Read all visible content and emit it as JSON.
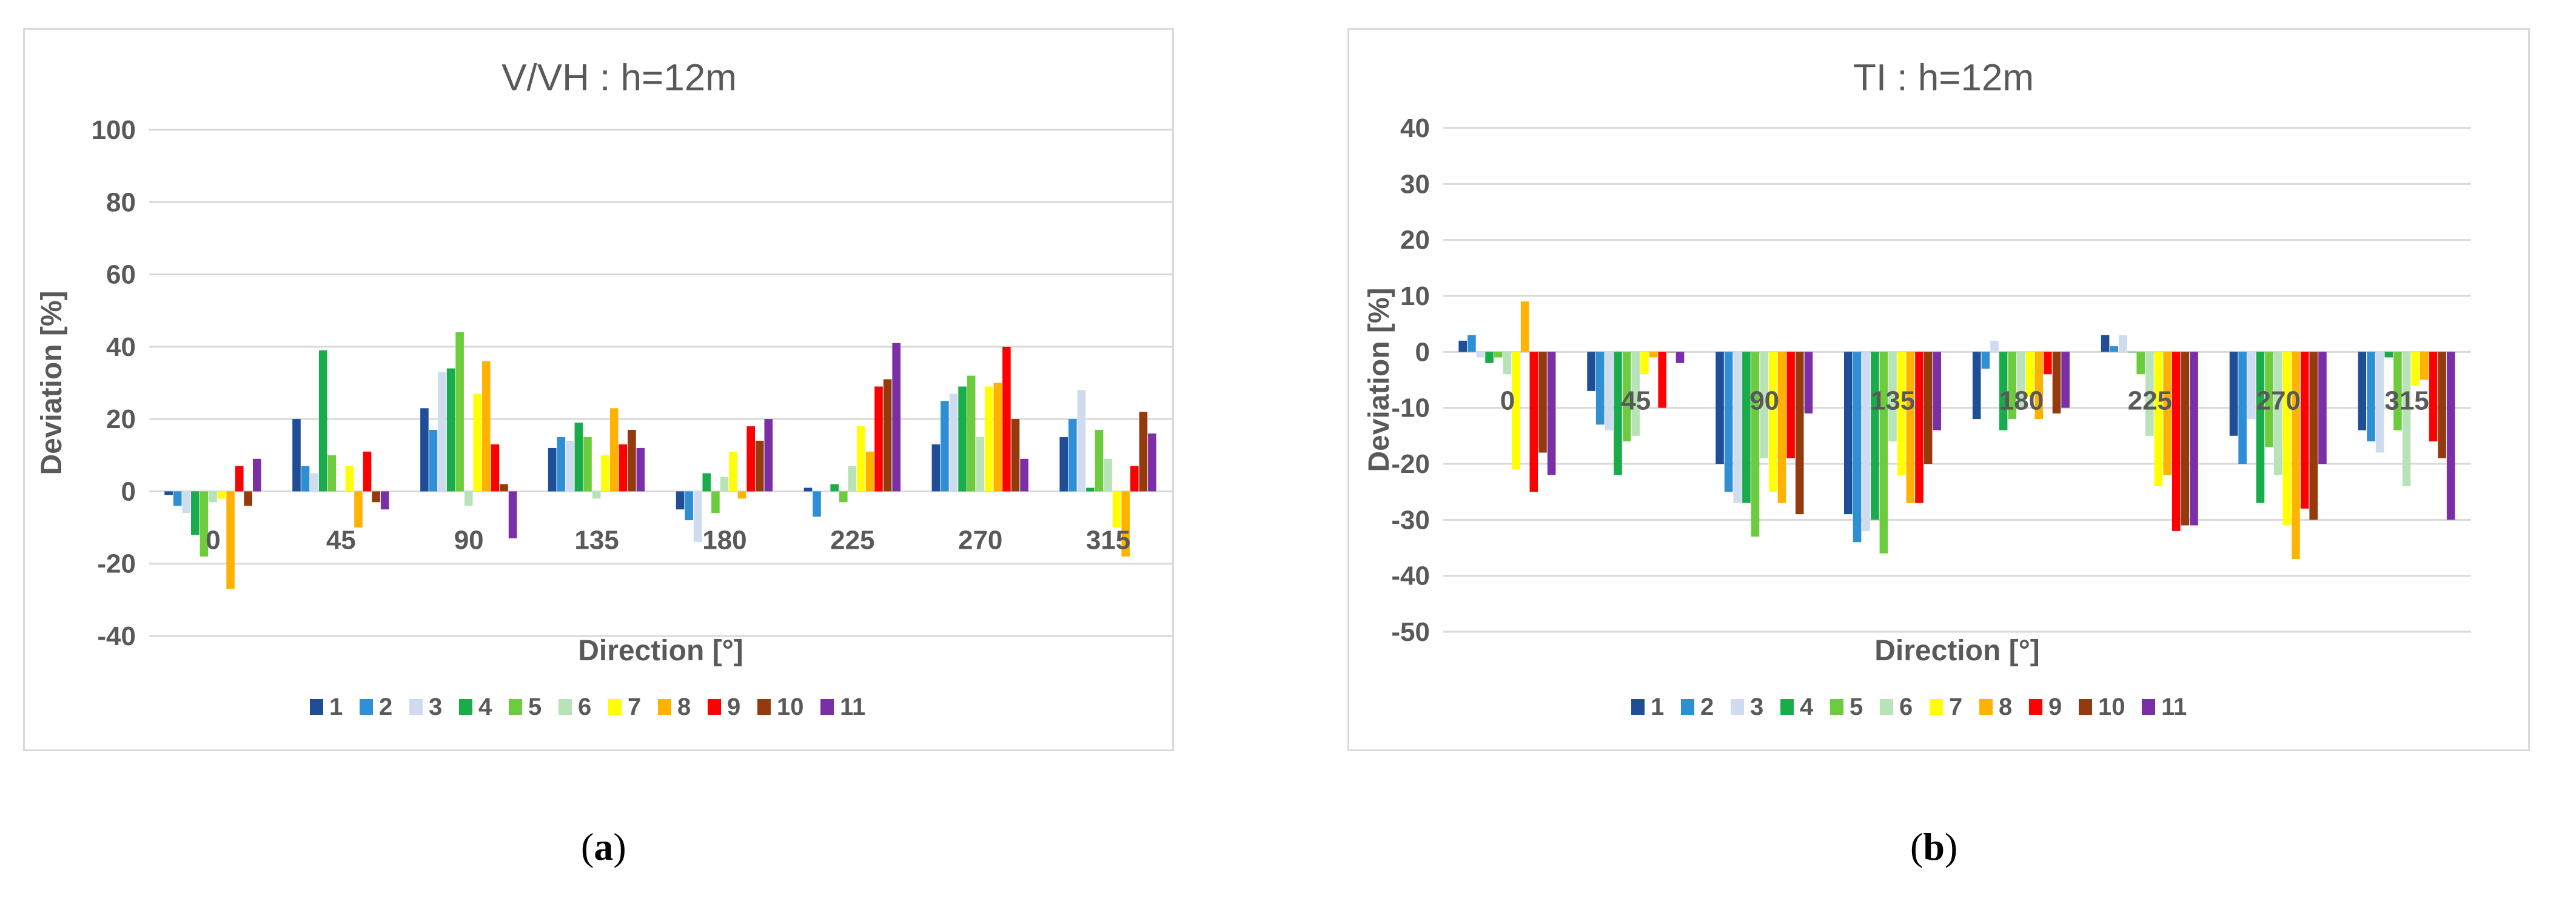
{
  "series_colors": [
    "#1f4e96",
    "#2e8fd4",
    "#cfdcf0",
    "#19ac4a",
    "#6dcc3e",
    "#b8e2b8",
    "#ffff00",
    "#ffb300",
    "#ff0000",
    "#953a0d",
    "#7b2fa6"
  ],
  "chart_data": [
    {
      "type": "bar",
      "title": "V/VH : h=12m",
      "xlabel": "Direction [°]",
      "ylabel": "Deviation [%]",
      "ylim": [
        -40,
        100
      ],
      "yticks": [
        -40,
        -20,
        0,
        20,
        40,
        60,
        80,
        100
      ],
      "grid": true,
      "legend": "bottom",
      "categories": [
        "0",
        "45",
        "90",
        "135",
        "180",
        "225",
        "270",
        "315"
      ],
      "series": [
        {
          "name": "1",
          "values": [
            -1,
            20,
            23,
            12,
            -5,
            1,
            13,
            15
          ]
        },
        {
          "name": "2",
          "values": [
            -4,
            7,
            17,
            15,
            -8,
            -7,
            25,
            20
          ]
        },
        {
          "name": "3",
          "values": [
            -6,
            5,
            33,
            14,
            -14,
            0,
            27,
            28
          ]
        },
        {
          "name": "4",
          "values": [
            -12,
            39,
            34,
            19,
            5,
            2,
            29,
            1
          ]
        },
        {
          "name": "5",
          "values": [
            -18,
            10,
            44,
            15,
            -6,
            -3,
            32,
            17
          ]
        },
        {
          "name": "6",
          "values": [
            -3,
            0,
            -4,
            -2,
            4,
            7,
            15,
            9
          ]
        },
        {
          "name": "7",
          "values": [
            -2,
            7,
            27,
            10,
            11,
            18,
            29,
            -10
          ]
        },
        {
          "name": "8",
          "values": [
            -27,
            -10,
            36,
            23,
            -2,
            11,
            30,
            -18
          ]
        },
        {
          "name": "9",
          "values": [
            7,
            11,
            13,
            13,
            18,
            29,
            40,
            7
          ]
        },
        {
          "name": "10",
          "values": [
            -4,
            -3,
            2,
            17,
            14,
            31,
            20,
            22
          ]
        },
        {
          "name": "11",
          "values": [
            9,
            -5,
            -13,
            12,
            20,
            41,
            9,
            16
          ]
        }
      ]
    },
    {
      "type": "bar",
      "title": "TI : h=12m",
      "xlabel": "Direction [°]",
      "ylabel": "Deviation [%]",
      "ylim": [
        -50,
        40
      ],
      "yticks": [
        -50,
        -40,
        -30,
        -20,
        -10,
        0,
        10,
        20,
        30,
        40
      ],
      "grid": true,
      "legend": "bottom",
      "categories": [
        "0",
        "45",
        "90",
        "135",
        "180",
        "225",
        "270",
        "315"
      ],
      "series": [
        {
          "name": "1",
          "values": [
            2,
            -7,
            -20,
            -29,
            -12,
            3,
            -15,
            -14
          ]
        },
        {
          "name": "2",
          "values": [
            3,
            -13,
            -25,
            -34,
            -3,
            1,
            -20,
            -16
          ]
        },
        {
          "name": "3",
          "values": [
            -1,
            -14,
            -27,
            -32,
            2,
            3,
            -12,
            -18
          ]
        },
        {
          "name": "4",
          "values": [
            -2,
            -22,
            -27,
            -30,
            -14,
            0,
            -27,
            -1
          ]
        },
        {
          "name": "5",
          "values": [
            -1,
            -16,
            -33,
            -36,
            -12,
            -4,
            -17,
            -14
          ]
        },
        {
          "name": "6",
          "values": [
            -4,
            -15,
            -19,
            -16,
            -10,
            -15,
            -22,
            -24
          ]
        },
        {
          "name": "7",
          "values": [
            -21,
            -4,
            -25,
            -22,
            -8,
            -24,
            -31,
            -6
          ]
        },
        {
          "name": "8",
          "values": [
            9,
            -1,
            -27,
            -27,
            -12,
            -22,
            -37,
            -5
          ]
        },
        {
          "name": "9",
          "values": [
            -25,
            -10,
            -19,
            -27,
            -4,
            -32,
            -28,
            -16
          ]
        },
        {
          "name": "10",
          "values": [
            -18,
            0,
            -29,
            -20,
            -11,
            -31,
            -30,
            -19
          ]
        },
        {
          "name": "11",
          "values": [
            -22,
            -2,
            -11,
            -14,
            -10,
            -31,
            -20,
            -30
          ]
        }
      ]
    }
  ],
  "captions": {
    "a_open": "(",
    "a_letter": "a",
    "a_close": ")",
    "b_open": "(",
    "b_letter": "b",
    "b_close": ")"
  }
}
